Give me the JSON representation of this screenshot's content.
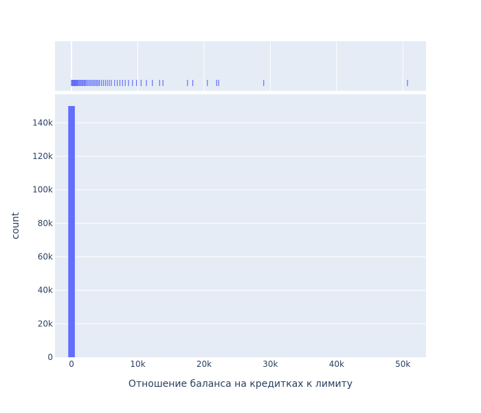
{
  "chart_data": {
    "type": "bar",
    "subtype": "histogram with marginal rug",
    "xlabel": "Отношение баланса на кредитках к лимиту",
    "ylabel": "count",
    "xlim": [
      -2500,
      53500
    ],
    "ylim": [
      0,
      157000
    ],
    "x_ticks": [
      {
        "value": 0,
        "label": "0"
      },
      {
        "value": 10000,
        "label": "10k"
      },
      {
        "value": 20000,
        "label": "20k"
      },
      {
        "value": 30000,
        "label": "30k"
      },
      {
        "value": 40000,
        "label": "40k"
      },
      {
        "value": 50000,
        "label": "50k"
      }
    ],
    "y_ticks": [
      {
        "value": 0,
        "label": "0"
      },
      {
        "value": 20000,
        "label": "20k"
      },
      {
        "value": 40000,
        "label": "40k"
      },
      {
        "value": 60000,
        "label": "60k"
      },
      {
        "value": 80000,
        "label": "80k"
      },
      {
        "value": 100000,
        "label": "100k"
      },
      {
        "value": 120000,
        "label": "120k"
      },
      {
        "value": 140000,
        "label": "140k"
      }
    ],
    "bins": [
      {
        "x0": -500,
        "x1": 500,
        "count": 150000
      }
    ],
    "rug_values": [
      0,
      100,
      200,
      300,
      400,
      500,
      600,
      700,
      800,
      900,
      1000,
      1150,
      1300,
      1450,
      1600,
      1750,
      1900,
      2050,
      2200,
      2400,
      2600,
      2800,
      3000,
      3200,
      3400,
      3600,
      3800,
      4000,
      4200,
      4500,
      4800,
      5100,
      5400,
      5700,
      6000,
      6500,
      6900,
      7300,
      7700,
      8100,
      8600,
      9200,
      9800,
      10500,
      11300,
      12200,
      13300,
      13800,
      17500,
      18300,
      20500,
      21900,
      22200,
      29000,
      50700
    ],
    "grid": true,
    "bar_color": "#636efa",
    "plot_bg": "#e5ecf6",
    "grid_color": "#ffffff"
  }
}
